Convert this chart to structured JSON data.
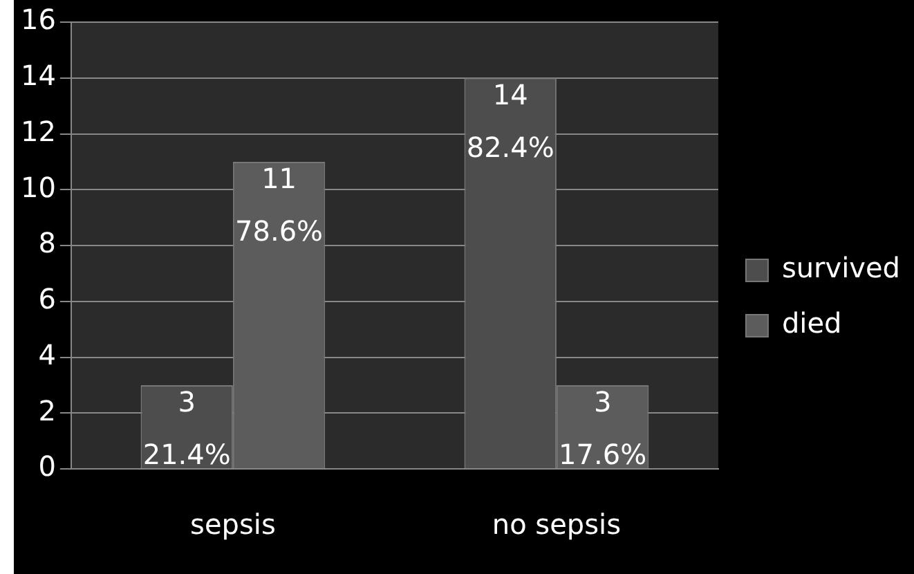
{
  "chart_data": {
    "type": "bar",
    "categories": [
      "sepsis",
      "no sepsis"
    ],
    "series": [
      {
        "name": "survived",
        "color": "#4d4d4d",
        "values": [
          3,
          14
        ],
        "value_labels": [
          "3\n21.4%",
          "14\n82.4%"
        ]
      },
      {
        "name": "died",
        "color": "#5c5c5c",
        "values": [
          11,
          3
        ],
        "value_labels": [
          "11\n78.6%",
          "3\n17.6%"
        ]
      }
    ],
    "ylim": [
      0,
      16
    ],
    "yticks": [
      0,
      2,
      4,
      6,
      8,
      10,
      12,
      14,
      16
    ],
    "grid": "y",
    "legend": "right"
  }
}
